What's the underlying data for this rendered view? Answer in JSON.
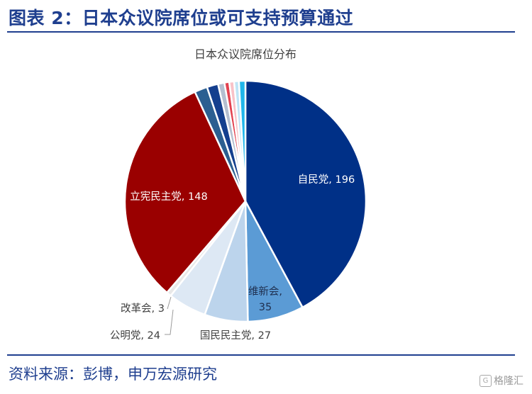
{
  "page": {
    "figure_title": "图表 2：日本众议院席位或可支持预算通过",
    "source": "资料来源：彭博，申万宏源研究",
    "watermark_logo": "G",
    "watermark_text": "格隆汇"
  },
  "chart_data": {
    "type": "pie",
    "title": "日本众议院席位分布",
    "slices": [
      {
        "name": "自民党",
        "value": 196,
        "label": "自民党, 196",
        "color": "#003087"
      },
      {
        "name": "维新会",
        "value": 35,
        "label": "维新会, 35",
        "color": "#5b9bd5"
      },
      {
        "name": "国民民主党",
        "value": 27,
        "label": "国民民主党, 27",
        "color": "#bcd4ec"
      },
      {
        "name": "公明党",
        "value": 24,
        "label": "公明党, 24",
        "color": "#dde8f4"
      },
      {
        "name": "改革会",
        "value": 3,
        "label": "改革会, 3",
        "color": "#e8e8e8"
      },
      {
        "name": "立宪民主党",
        "value": 148,
        "label": "立宪民主党, 148",
        "color": "#9a0000"
      },
      {
        "name": "",
        "value": 8,
        "label": "",
        "color": "#2b5f91"
      },
      {
        "name": "",
        "value": 7,
        "label": "",
        "color": "#143f8e"
      },
      {
        "name": "",
        "value": 4,
        "label": "",
        "color": "#b4bfd0"
      },
      {
        "name": "",
        "value": 3,
        "label": "",
        "color": "#e2414f"
      },
      {
        "name": "",
        "value": 3,
        "label": "",
        "color": "#f8c2c8"
      },
      {
        "name": "",
        "value": 3,
        "label": "",
        "color": "#bfe4f6"
      },
      {
        "name": "",
        "value": 4,
        "label": "",
        "color": "#1fb6ea"
      }
    ]
  }
}
